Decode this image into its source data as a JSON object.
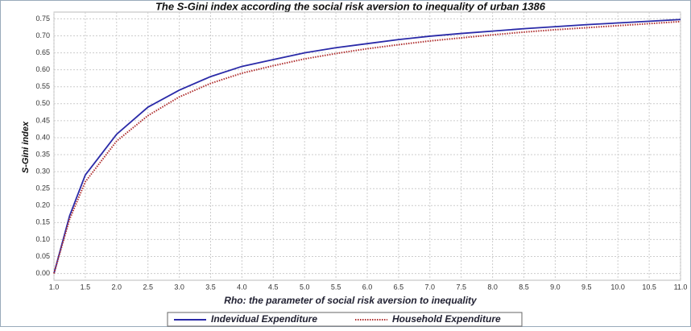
{
  "chart_data": {
    "type": "line",
    "title": "The S-Gini index according the social risk aversion to inequality of urban 1386",
    "x_label": "Rho: the parameter of social risk aversion to inequality",
    "y_label": "S-Gini index",
    "x": [
      1,
      1.25,
      1.5,
      2,
      2.5,
      3,
      3.5,
      4,
      4.5,
      5,
      5.5,
      6,
      6.5,
      7,
      7.5,
      8,
      8.5,
      9,
      9.5,
      10,
      10.5,
      11
    ],
    "series": [
      {
        "name": "Indevidual Expenditure",
        "color": "#2a2aa8",
        "dash": "solid",
        "values": [
          0,
          0.17,
          0.29,
          0.41,
          0.49,
          0.54,
          0.58,
          0.61,
          0.63,
          0.65,
          0.665,
          0.677,
          0.689,
          0.699,
          0.707,
          0.714,
          0.721,
          0.727,
          0.733,
          0.738,
          0.743,
          0.748
        ]
      },
      {
        "name": "Household Expenditure",
        "color": "#b03030",
        "dash": "dotted",
        "values": [
          0,
          0.16,
          0.27,
          0.39,
          0.465,
          0.52,
          0.56,
          0.59,
          0.612,
          0.632,
          0.648,
          0.662,
          0.674,
          0.685,
          0.694,
          0.703,
          0.711,
          0.718,
          0.724,
          0.73,
          0.736,
          0.742
        ]
      }
    ],
    "xlim": [
      1,
      11
    ],
    "ylim": [
      -0.02,
      0.77
    ],
    "xticks": [
      {
        "value": 1,
        "label": "1.0"
      },
      1.5,
      {
        "value": 2,
        "label": "2.0"
      },
      2.5,
      {
        "value": 3,
        "label": "3.0"
      },
      3.5,
      {
        "value": 4,
        "label": "4.0"
      },
      4.5,
      {
        "value": 5,
        "label": "5.0"
      },
      5.5,
      {
        "value": 6,
        "label": "6.0"
      },
      6.5,
      {
        "value": 7,
        "label": "7.0"
      },
      7.5,
      {
        "value": 8,
        "label": "8.0"
      },
      8.5,
      {
        "value": 9,
        "label": "9.0"
      },
      9.5,
      {
        "value": 10,
        "label": "10.0"
      },
      10.5,
      {
        "value": 11,
        "label": "11.0"
      }
    ],
    "yticks": [
      {
        "value": 0,
        "label": "0.00"
      },
      0.05,
      {
        "value": 0.1,
        "label": "0.10"
      },
      0.15,
      {
        "value": 0.2,
        "label": "0.20"
      },
      0.25,
      {
        "value": 0.3,
        "label": "0.30"
      },
      0.35,
      {
        "value": 0.4,
        "label": "0.40"
      },
      0.45,
      {
        "value": 0.5,
        "label": "0.50"
      },
      0.55,
      {
        "value": 0.6,
        "label": "0.60"
      },
      0.65,
      {
        "value": 0.7,
        "label": "0.70"
      },
      0.75
    ],
    "grid": true,
    "legend": "bottom"
  }
}
